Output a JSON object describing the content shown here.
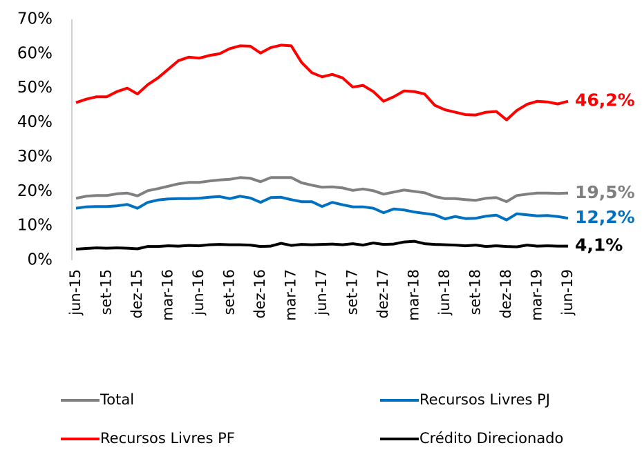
{
  "chart_data": {
    "type": "line",
    "categories": [
      "jun-15",
      null,
      null,
      "set-15",
      null,
      null,
      "dez-15",
      null,
      null,
      "mar-16",
      null,
      null,
      "jun-16",
      null,
      null,
      "set-16",
      null,
      null,
      "dez-16",
      null,
      null,
      "mar-17",
      null,
      null,
      "jun-17",
      null,
      null,
      "set-17",
      null,
      null,
      "dez-17",
      null,
      null,
      "mar-18",
      null,
      null,
      "jun-18",
      null,
      null,
      "set-18",
      null,
      null,
      "dez-18",
      null,
      null,
      "mar-19",
      null,
      null,
      "jun-19"
    ],
    "series": [
      {
        "name": "Total",
        "color": "#808080",
        "values": [
          18,
          18.6,
          18.8,
          18.8,
          19.3,
          19.5,
          18.7,
          20.2,
          20.8,
          21.5,
          22.2,
          22.6,
          22.6,
          23,
          23.3,
          23.5,
          24,
          23.8,
          22.8,
          24,
          24,
          24,
          22.5,
          21.8,
          21.2,
          21.3,
          21,
          20.3,
          20.7,
          20.2,
          19.2,
          19.8,
          20.4,
          20,
          19.6,
          18.5,
          17.9,
          17.9,
          17.6,
          17.4,
          18,
          18.2,
          17,
          18.8,
          19.2,
          19.5,
          19.5,
          19.4,
          19.5
        ],
        "value_labels": [
          null,
          null,
          null,
          null,
          null,
          null,
          null,
          null,
          null,
          null,
          null,
          null,
          null,
          null,
          null,
          null,
          null,
          null,
          null,
          null,
          null,
          null,
          null,
          null,
          null,
          null,
          null,
          null,
          null,
          null,
          null,
          null,
          null,
          null,
          null,
          null,
          null,
          null,
          null,
          null,
          null,
          null,
          null,
          null,
          null,
          null,
          null,
          null,
          "19,5%"
        ]
      },
      {
        "name": "Recursos Livres PJ",
        "color": "#0070c0",
        "values": [
          15.1,
          15.5,
          15.6,
          15.6,
          15.8,
          16.2,
          15.1,
          16.8,
          17.5,
          17.8,
          17.9,
          17.9,
          18,
          18.3,
          18.5,
          17.9,
          18.6,
          18.1,
          16.8,
          18.2,
          18.3,
          17.6,
          17,
          17,
          15.6,
          16.8,
          16.1,
          15.5,
          15.5,
          15.1,
          13.8,
          14.9,
          14.6,
          14,
          13.6,
          13.2,
          12,
          12.7,
          12.1,
          12.2,
          12.8,
          13.1,
          11.7,
          13.5,
          13.2,
          12.9,
          13,
          12.7,
          12.2
        ],
        "value_labels": [
          null,
          null,
          null,
          null,
          null,
          null,
          null,
          null,
          null,
          null,
          null,
          null,
          null,
          null,
          null,
          null,
          null,
          null,
          null,
          null,
          null,
          null,
          null,
          null,
          null,
          null,
          null,
          null,
          null,
          null,
          null,
          null,
          null,
          null,
          null,
          null,
          null,
          null,
          null,
          null,
          null,
          null,
          null,
          null,
          null,
          null,
          null,
          null,
          "12,2%"
        ]
      },
      {
        "name": "Recursos Livres PF",
        "color": "#ff0000",
        "values": [
          45.8,
          46.8,
          47.5,
          47.5,
          49,
          50,
          48.3,
          51,
          53,
          55.5,
          58,
          59,
          58.7,
          59.5,
          60,
          61.5,
          62.3,
          62.2,
          60.2,
          61.8,
          62.5,
          62.3,
          57.5,
          54.5,
          53.3,
          54,
          53,
          50.3,
          50.8,
          49,
          46.2,
          47.5,
          49.2,
          49,
          48.3,
          45,
          43.7,
          43,
          42.3,
          42.2,
          43,
          43.2,
          40.8,
          43.5,
          45.3,
          46.2,
          46,
          45.4,
          46.2
        ],
        "value_labels": [
          null,
          null,
          null,
          null,
          null,
          null,
          null,
          null,
          null,
          null,
          null,
          null,
          null,
          null,
          null,
          null,
          null,
          null,
          null,
          null,
          null,
          null,
          null,
          null,
          null,
          null,
          null,
          null,
          null,
          null,
          null,
          null,
          null,
          null,
          null,
          null,
          null,
          null,
          null,
          null,
          null,
          null,
          null,
          null,
          null,
          null,
          null,
          null,
          "46,2%"
        ]
      },
      {
        "name": "Crédito Direcionado",
        "color": "#000000",
        "values": [
          3.2,
          3.4,
          3.6,
          3.5,
          3.6,
          3.5,
          3.3,
          4,
          4,
          4.2,
          4.1,
          4.3,
          4.2,
          4.5,
          4.6,
          4.5,
          4.5,
          4.4,
          4,
          4.1,
          4.9,
          4.3,
          4.6,
          4.5,
          4.6,
          4.7,
          4.5,
          4.8,
          4.4,
          5,
          4.6,
          4.7,
          5.3,
          5.5,
          4.8,
          4.6,
          4.5,
          4.4,
          4.2,
          4.4,
          4,
          4.2,
          4,
          3.9,
          4.4,
          4.1,
          4.2,
          4.1,
          4.1
        ],
        "value_labels": [
          null,
          null,
          null,
          null,
          null,
          null,
          null,
          null,
          null,
          null,
          null,
          null,
          null,
          null,
          null,
          null,
          null,
          null,
          null,
          null,
          null,
          null,
          null,
          null,
          null,
          null,
          null,
          null,
          null,
          null,
          null,
          null,
          null,
          null,
          null,
          null,
          null,
          null,
          null,
          null,
          null,
          null,
          null,
          null,
          null,
          null,
          null,
          null,
          "4,1%"
        ]
      }
    ],
    "ylim": [
      0,
      70
    ],
    "yticks": [
      {
        "value": 0,
        "label": "0%"
      },
      {
        "value": 10,
        "label": "10%"
      },
      {
        "value": 20,
        "label": "20%"
      },
      {
        "value": 30,
        "label": "30%"
      },
      {
        "value": 40,
        "label": "40%"
      },
      {
        "value": 50,
        "label": "50%"
      },
      {
        "value": 60,
        "label": "60%"
      },
      {
        "value": 70,
        "label": "70%"
      }
    ],
    "grid": false
  }
}
